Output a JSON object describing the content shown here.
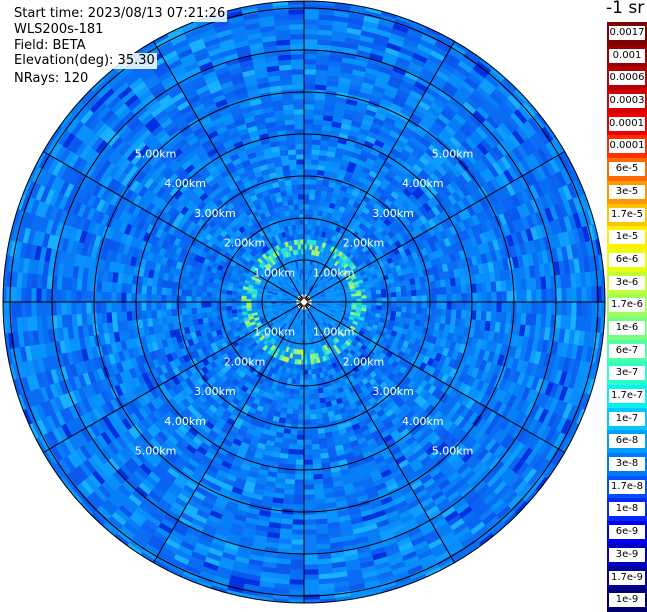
{
  "info": {
    "start_time": "Start time: 2023/08/13 07:21:26",
    "station": "WLS200s-181",
    "field": "Field: BETA",
    "elevation": "Elevation(deg): 35.30",
    "nrays": "NRays: 120"
  },
  "units": "-1 sr",
  "range_labels": [
    "1.00km",
    "2.00km",
    "3.00km",
    "4.00km",
    "5.00km"
  ],
  "legend": [
    {
      "label": "0.0017",
      "color": "#7f0000"
    },
    {
      "label": "0.001",
      "color": "#9a0000"
    },
    {
      "label": "0.0006",
      "color": "#b80000"
    },
    {
      "label": "0.0003",
      "color": "#d60000"
    },
    {
      "label": "0.00017",
      "color": "#ee0000"
    },
    {
      "label": "0.0001",
      "color": "#ff3000"
    },
    {
      "label": "6e-5",
      "color": "#ff6a00"
    },
    {
      "label": "3e-5",
      "color": "#ff9800"
    },
    {
      "label": "1.7e-5",
      "color": "#ffc400"
    },
    {
      "label": "1e-5",
      "color": "#ffee00"
    },
    {
      "label": "6e-6",
      "color": "#e8ff10"
    },
    {
      "label": "3e-6",
      "color": "#c2ff35"
    },
    {
      "label": "1.7e-6",
      "color": "#9cff5a"
    },
    {
      "label": "1e-6",
      "color": "#76ff80"
    },
    {
      "label": "6e-7",
      "color": "#50ffa6"
    },
    {
      "label": "3e-7",
      "color": "#2affcc"
    },
    {
      "label": "1.7e-7",
      "color": "#08f0f0"
    },
    {
      "label": "1e-7",
      "color": "#00c8ff"
    },
    {
      "label": "6e-8",
      "color": "#00a0ff"
    },
    {
      "label": "3e-8",
      "color": "#0078ff"
    },
    {
      "label": "1.7e-8",
      "color": "#0050ff"
    },
    {
      "label": "1e-8",
      "color": "#0028ff"
    },
    {
      "label": "6e-9",
      "color": "#0000f0"
    },
    {
      "label": "3e-9",
      "color": "#0000c0"
    },
    {
      "label": "1.7e-9",
      "color": "#000098"
    },
    {
      "label": "1e-9",
      "color": "#00006e"
    }
  ]
}
